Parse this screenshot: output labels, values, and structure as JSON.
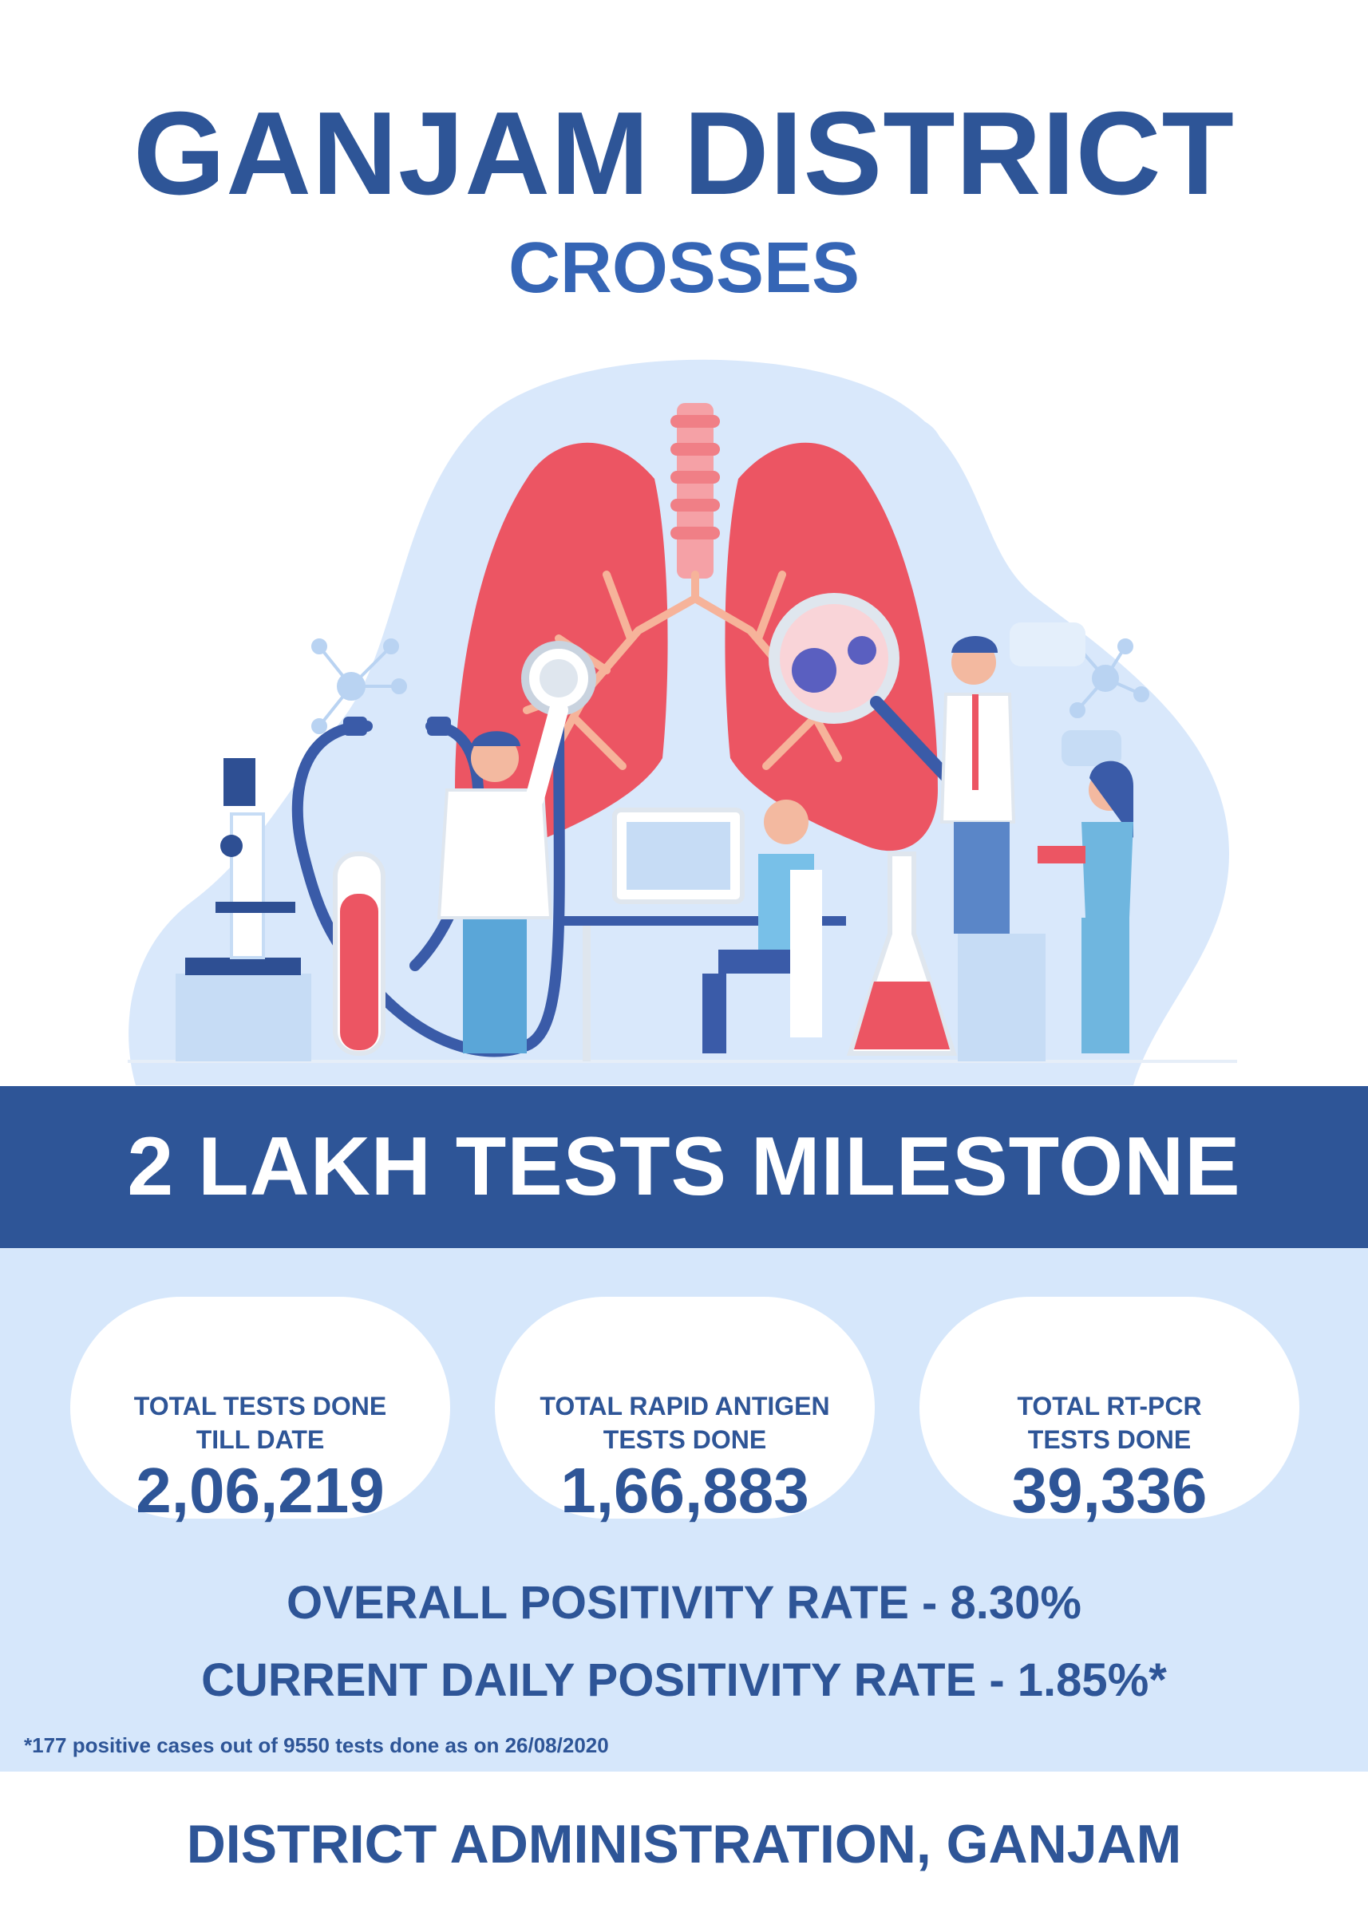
{
  "header": {
    "title": "GANJAM DISTRICT",
    "subtitle": "CROSSES"
  },
  "banner": {
    "text": "2 LAKH TESTS MILESTONE"
  },
  "stats": [
    {
      "label_line1": "TOTAL TESTS DONE",
      "label_line2": "TILL DATE",
      "value": "2,06,219"
    },
    {
      "label_line1": "TOTAL RAPID ANTIGEN",
      "label_line2": "TESTS DONE",
      "value": "1,66,883"
    },
    {
      "label_line1": "TOTAL RT-PCR",
      "label_line2": "TESTS DONE",
      "value": "39,336"
    }
  ],
  "rates": {
    "overall": "OVERALL POSITIVITY RATE - 8.30%",
    "daily": "CURRENT DAILY POSITIVITY RATE - 1.85%*"
  },
  "footnote": "*177 positive cases out of 9550 tests done as on 26/08/2020",
  "footer": "DISTRICT ADMINISTRATION, GANJAM",
  "colors": {
    "primary": "#2e5597",
    "panel": "#d6e7fb",
    "lung": "#ec5563",
    "blob": "#d9e8fb"
  }
}
